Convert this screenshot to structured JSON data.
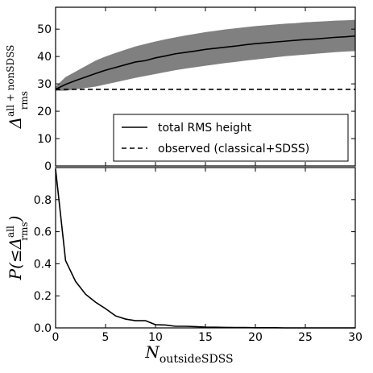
{
  "chart_data": [
    {
      "type": "line",
      "ylabel": {
        "base": "Δ",
        "sup": "all + nonSDSS",
        "sub": "rms"
      },
      "xlim": [
        0,
        30
      ],
      "ylim": [
        0,
        58
      ],
      "xticks": [
        0,
        5,
        10,
        15,
        20,
        25,
        30
      ],
      "yticks": [
        0,
        10,
        20,
        30,
        40,
        50
      ],
      "grid": false,
      "legend_position": "lower-right",
      "series": [
        {
          "name": "total RMS height",
          "style": "solid",
          "color": "#000000",
          "x": [
            0,
            1,
            2,
            3,
            4,
            5,
            6,
            7,
            8,
            9,
            10,
            11,
            12,
            13,
            14,
            15,
            16,
            17,
            18,
            19,
            20,
            21,
            22,
            23,
            24,
            25,
            26,
            27,
            28,
            29,
            30
          ],
          "y": [
            28,
            29.8,
            31.2,
            32.5,
            33.8,
            35,
            36,
            37,
            38,
            38.5,
            39.5,
            40.2,
            41,
            41.5,
            42,
            42.6,
            43,
            43.4,
            43.8,
            44.3,
            44.7,
            45,
            45.3,
            45.6,
            45.9,
            46.2,
            46.4,
            46.7,
            47,
            47.2,
            47.5
          ],
          "band_lower": [
            27.5,
            27.5,
            28,
            28.5,
            29,
            29.8,
            30.6,
            31.4,
            32.2,
            32.9,
            33.6,
            34.3,
            35,
            35.6,
            36.1,
            36.6,
            37.1,
            37.6,
            38,
            38.5,
            38.9,
            39.3,
            39.7,
            40.1,
            40.4,
            40.7,
            41,
            41.3,
            41.6,
            41.8,
            42
          ],
          "band_upper": [
            29,
            32.5,
            34.5,
            36.5,
            38.5,
            40,
            41.3,
            42.5,
            43.7,
            44.6,
            45.5,
            46.3,
            47,
            47.7,
            48.3,
            48.9,
            49.4,
            49.9,
            50.3,
            50.7,
            51.1,
            51.4,
            51.7,
            52,
            52.2,
            52.5,
            52.7,
            52.9,
            53.1,
            53.2,
            53.4
          ],
          "band_color": "#808080"
        },
        {
          "name": "observed (classical+SDSS)",
          "style": "dashed",
          "color": "#000000",
          "x": [
            0,
            30
          ],
          "y": [
            28,
            28
          ]
        }
      ]
    },
    {
      "type": "line",
      "xlabel": {
        "base": "N",
        "sub": "outsideSDSS"
      },
      "ylabel": {
        "base": "P(≤Δ",
        "sup": "all",
        "sub": "rms",
        "tail": ")"
      },
      "xlim": [
        0,
        30
      ],
      "ylim": [
        0,
        1.0
      ],
      "xticks": [
        0,
        5,
        10,
        15,
        20,
        25,
        30
      ],
      "yticks": [
        0.0,
        0.2,
        0.4,
        0.6,
        0.8
      ],
      "grid": false,
      "series": [
        {
          "style": "solid",
          "color": "#000000",
          "x": [
            0,
            1,
            2,
            3,
            4,
            5,
            6,
            7,
            8,
            9,
            10,
            11,
            12,
            13,
            14,
            15,
            16,
            17,
            18,
            19,
            20,
            21,
            22,
            23,
            24,
            25,
            26,
            27,
            28,
            29,
            30
          ],
          "y": [
            0.99,
            0.42,
            0.29,
            0.21,
            0.16,
            0.12,
            0.075,
            0.055,
            0.045,
            0.045,
            0.02,
            0.018,
            0.01,
            0.01,
            0.008,
            0.005,
            0.004,
            0.003,
            0.002,
            0.002,
            0.001,
            0.001,
            0.001,
            0.0,
            0.0,
            0.0,
            0.0,
            0.0,
            0.0,
            0.0,
            0.0
          ]
        }
      ]
    }
  ]
}
